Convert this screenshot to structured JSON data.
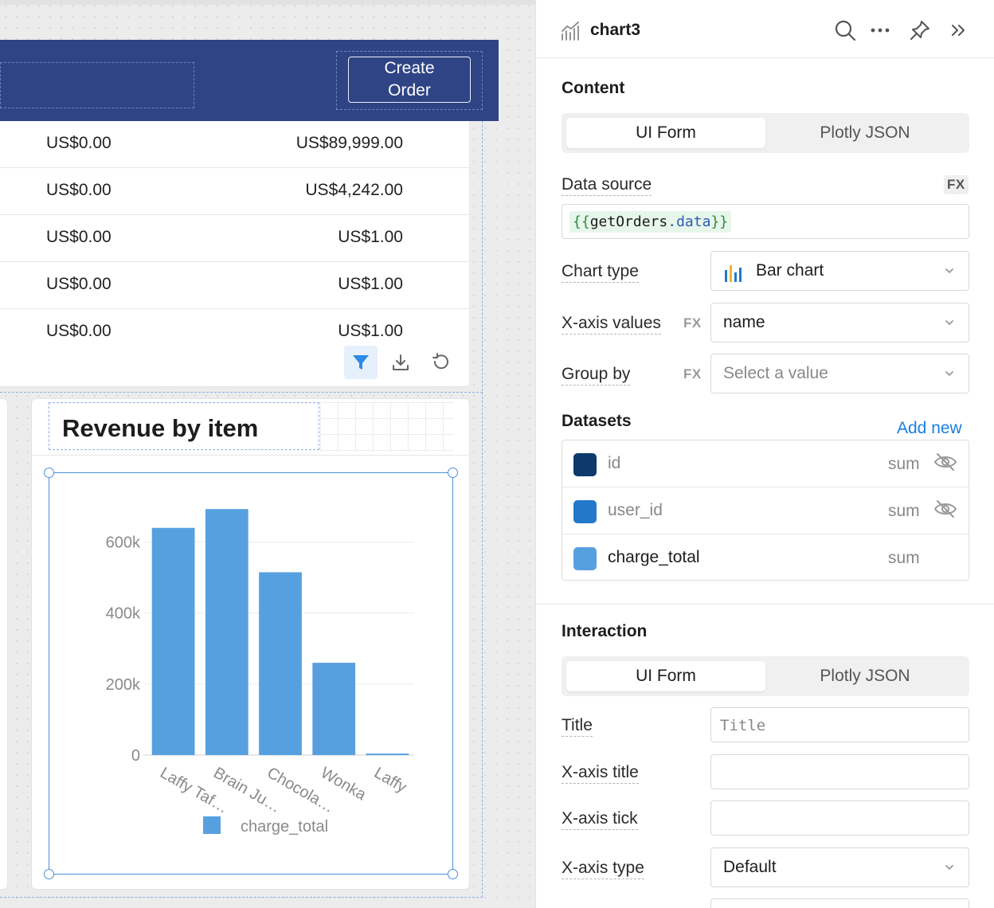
{
  "table": {
    "rows": [
      {
        "col1": "US$0.00",
        "col2": "US$89,999.00"
      },
      {
        "col1": "US$0.00",
        "col2": "US$4,242.00"
      },
      {
        "col1": "US$0.00",
        "col2": "US$1.00"
      },
      {
        "col1": "US$0.00",
        "col2": "US$1.00"
      },
      {
        "col1": "US$0.00",
        "col2": "US$1.00"
      }
    ],
    "toolbar": {
      "filter_icon": "filter-icon",
      "download_icon": "download-icon",
      "refresh_icon": "refresh-icon"
    }
  },
  "header": {
    "create_order_line1": "Create",
    "create_order_line2": "Order",
    "background_color": "#2f4485"
  },
  "chart_widget": {
    "title": "Revenue by item"
  },
  "chart_data": {
    "type": "bar",
    "categories": [
      "Laffy Taf…",
      "Brain Ju…",
      "Chocola…",
      "Wonka",
      "Laffy"
    ],
    "series": [
      {
        "name": "charge_total",
        "values": [
          640000,
          693000,
          515000,
          260000,
          4242
        ],
        "color": "#57a0e0"
      }
    ],
    "y_ticks": [
      "0",
      "200k",
      "400k",
      "600k"
    ],
    "ylim": [
      0,
      700000
    ],
    "grid": true,
    "legend": "bottom"
  },
  "panel": {
    "widget_name": "chart3",
    "icons": [
      "search-icon",
      "more-icon",
      "pin-icon",
      "collapse-icon"
    ],
    "content": {
      "section_title": "Content",
      "tabs": [
        "UI Form",
        "Plotly JSON"
      ],
      "data_source_label": "Data source",
      "fx_label": "FX",
      "data_source": {
        "open": "{{",
        "name": "getOrders",
        "dot": ".",
        "prop": "data",
        "close": "}}"
      },
      "chart_type_label": "Chart type",
      "chart_type_value": "Bar chart",
      "x_axis_label": "X-axis values",
      "x_axis_value": "name",
      "group_by_label": "Group by",
      "group_by_placeholder": "Select a value",
      "datasets_label": "Datasets",
      "add_new": "Add new",
      "datasets": [
        {
          "name": "id",
          "agg": "sum",
          "color": "#0d3a6a",
          "hidden": true
        },
        {
          "name": "user_id",
          "agg": "sum",
          "color": "#2378cc",
          "hidden": true
        },
        {
          "name": "charge_total",
          "agg": "sum",
          "color": "#57a0e0",
          "hidden": false
        }
      ]
    },
    "interaction": {
      "section_title": "Interaction",
      "tabs": [
        "UI Form",
        "Plotly JSON"
      ],
      "title_label": "Title",
      "title_placeholder": "Title",
      "x_axis_title_label": "X-axis title",
      "x_axis_tick_label": "X-axis tick",
      "x_axis_type_label": "X-axis type",
      "x_axis_type_value": "Default"
    }
  }
}
